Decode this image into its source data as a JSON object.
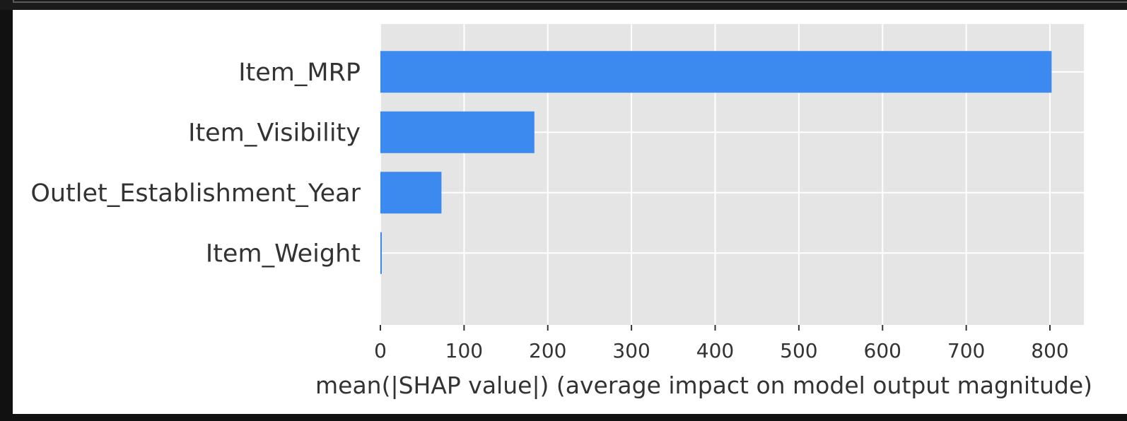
{
  "notebook": {
    "cell_output": "shap-summary-bar-plot"
  },
  "chart_data": {
    "type": "bar",
    "orientation": "horizontal",
    "categories": [
      "Item_MRP",
      "Item_Visibility",
      "Outlet_Establishment_Year",
      "Item_Weight"
    ],
    "values": [
      802,
      184,
      73,
      1
    ],
    "xlabel": "mean(|SHAP value|) (average impact on model output magnitude)",
    "ylabel": "",
    "xlim": [
      0,
      842
    ],
    "xticks": [
      0,
      100,
      200,
      300,
      400,
      500,
      600,
      700,
      800
    ],
    "grid": true,
    "bar_color": "#3c8aef",
    "plot_background": "#e5e5e5",
    "grid_color": "#ffffff",
    "text_color": "#333333"
  }
}
